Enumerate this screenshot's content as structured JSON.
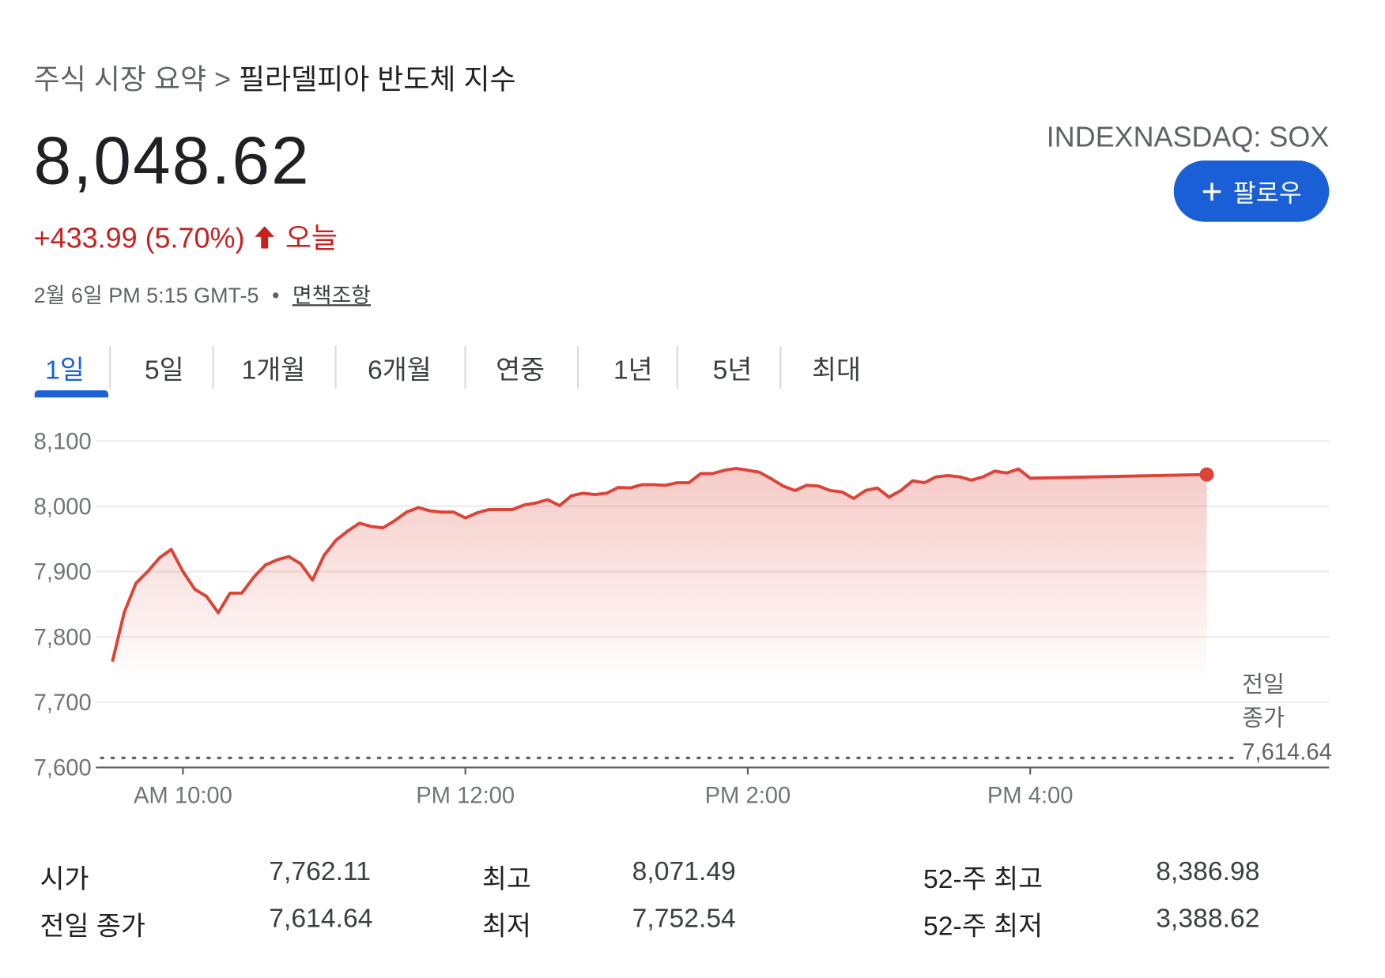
{
  "header": {
    "breadcrumb": "주식 시장 요약",
    "separator": ">",
    "title": "필라델피아 반도체 지수"
  },
  "quote": {
    "price": "8,048.62",
    "change": "+433.99 (5.70%)",
    "period": "오늘",
    "timestamp": "2월 6일 PM 5:15 GMT-5",
    "dot": "•",
    "disclaimer": "면책조항",
    "ticker": "INDEXNASDAQ: SOX",
    "follow": "팔로우"
  },
  "tabs": {
    "items": [
      "1일",
      "5일",
      "1개월",
      "6개월",
      "연중",
      "1년",
      "5년",
      "최대"
    ],
    "active": 0
  },
  "chart_data": {
    "type": "line",
    "color": "#db4437",
    "x": [
      570,
      575,
      580,
      585,
      590,
      595,
      600,
      605,
      610,
      615,
      620,
      625,
      630,
      635,
      640,
      645,
      650,
      655,
      660,
      665,
      670,
      675,
      680,
      685,
      690,
      695,
      700,
      705,
      710,
      715,
      720,
      725,
      730,
      735,
      740,
      745,
      750,
      755,
      760,
      765,
      770,
      775,
      780,
      785,
      790,
      795,
      800,
      805,
      810,
      815,
      820,
      825,
      830,
      835,
      840,
      845,
      850,
      855,
      860,
      865,
      870,
      875,
      880,
      885,
      890,
      895,
      900,
      905,
      910,
      915,
      920,
      925,
      930,
      935,
      940,
      945,
      950,
      955,
      960,
      1035
    ],
    "values": [
      7762,
      7837,
      7882,
      7900,
      7921,
      7934,
      7900,
      7873,
      7862,
      7837,
      7867,
      7867,
      7891,
      7910,
      7918,
      7923,
      7912,
      7887,
      7925,
      7948,
      7962,
      7974,
      7969,
      7967,
      7978,
      7991,
      7998,
      7993,
      7991,
      7991,
      7982,
      7990,
      7995,
      7995,
      7995,
      8002,
      8005,
      8010,
      8001,
      8016,
      8020,
      8018,
      8020,
      8029,
      8028,
      8033,
      8033,
      8032,
      8036,
      8036,
      8050,
      8050,
      8055,
      8058,
      8055,
      8052,
      8042,
      8031,
      8024,
      8032,
      8031,
      8024,
      8022,
      8012,
      8024,
      8028,
      8014,
      8024,
      8039,
      8036,
      8045,
      8047,
      8045,
      8040,
      8045,
      8054,
      8051,
      8057,
      8043,
      8048.62
    ],
    "xlim": [
      563,
      1087
    ],
    "xticks": [
      {
        "value": 600,
        "label": "AM 10:00"
      },
      {
        "value": 720,
        "label": "PM 12:00"
      },
      {
        "value": 840,
        "label": "PM 2:00"
      },
      {
        "value": 960,
        "label": "PM 4:00"
      }
    ],
    "ylim": [
      7600,
      8100
    ],
    "yticks": [
      {
        "value": 7600,
        "label": "7,600"
      },
      {
        "value": 7700,
        "label": "7,700"
      },
      {
        "value": 7800,
        "label": "7,800"
      },
      {
        "value": 7900,
        "label": "7,900"
      },
      {
        "value": 8000,
        "label": "8,000"
      },
      {
        "value": 8100,
        "label": "8,100"
      }
    ],
    "grid": true,
    "reference": {
      "label": "전일 종가",
      "value": 7614.64,
      "value_label": "7,614.64"
    }
  },
  "stats": {
    "rows": [
      [
        "시가",
        "7,762.11",
        "최고",
        "8,071.49",
        "52-주 최고",
        "8,386.98"
      ],
      [
        "전일 종가",
        "7,614.64",
        "최저",
        "7,752.54",
        "52-주 최저",
        "3,388.62"
      ]
    ]
  }
}
